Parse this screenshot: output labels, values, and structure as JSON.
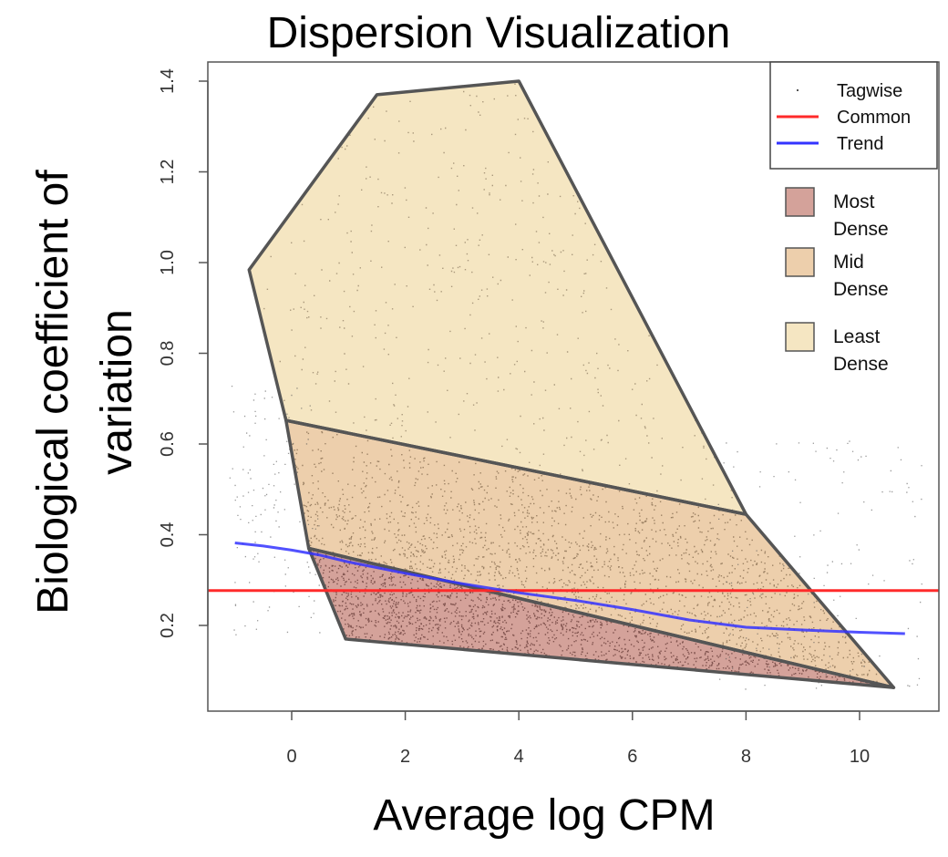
{
  "chart_data": {
    "type": "scatter",
    "title": "Dispersion Visualization",
    "xlabel": "Average log CPM",
    "ylabel_lines": [
      "Biological coefficient of",
      "variation"
    ],
    "xlim": [
      -1.5,
      11.3
    ],
    "ylim": [
      0.02,
      1.44
    ],
    "xticks": [
      0,
      2,
      4,
      6,
      8,
      10
    ],
    "yticks": [
      0.2,
      0.4,
      0.6,
      0.8,
      1.0,
      1.2,
      1.4
    ],
    "ytick_labels": [
      "0.2",
      "0.4",
      "0.6",
      "0.8",
      "1.0",
      "1.2",
      "1.4"
    ],
    "legend": [
      {
        "label": "Tagwise",
        "style": "point",
        "color": "#555555"
      },
      {
        "label": "Common",
        "style": "line",
        "color": "#ff2a2a"
      },
      {
        "label": "Trend",
        "style": "line",
        "color": "#3333ff"
      }
    ],
    "common_bcv": 0.277,
    "trend": {
      "name": "Trend",
      "color": "#3333ff",
      "x": [
        -1.0,
        -0.5,
        0.0,
        0.5,
        1.0,
        2.0,
        3.0,
        4.0,
        5.0,
        6.0,
        7.0,
        8.0,
        9.0,
        10.0,
        10.8
      ],
      "y": [
        0.382,
        0.375,
        0.366,
        0.355,
        0.34,
        0.315,
        0.292,
        0.272,
        0.255,
        0.235,
        0.212,
        0.196,
        0.19,
        0.185,
        0.182
      ]
    },
    "common": {
      "name": "Common",
      "color": "#ff2a2a"
    },
    "density_regions": [
      {
        "name": "Least Dense",
        "label_lines": [
          "Least",
          "Dense"
        ],
        "fill": "#f5e6c2",
        "polygon": [
          [
            -0.75,
            0.984
          ],
          [
            1.5,
            1.37
          ],
          [
            4.0,
            1.4
          ],
          [
            8.0,
            0.445
          ],
          [
            -0.1,
            0.652
          ]
        ]
      },
      {
        "name": "Mid Dense",
        "label_lines": [
          "Mid",
          "Dense"
        ],
        "fill": "#edcfac",
        "polygon": [
          [
            -0.1,
            0.652
          ],
          [
            8.0,
            0.445
          ],
          [
            10.6,
            0.063
          ],
          [
            0.3,
            0.37
          ]
        ]
      },
      {
        "name": "Most Dense",
        "label_lines": [
          "Most",
          "Dense"
        ],
        "fill": "#d4a29a",
        "polygon": [
          [
            0.3,
            0.37
          ],
          [
            10.6,
            0.063
          ],
          [
            0.95,
            0.17
          ]
        ]
      }
    ],
    "tagwise_point_counts": {
      "least_dense": 420,
      "mid_dense": 5200,
      "most_dense": 9000,
      "outside": 260
    }
  }
}
